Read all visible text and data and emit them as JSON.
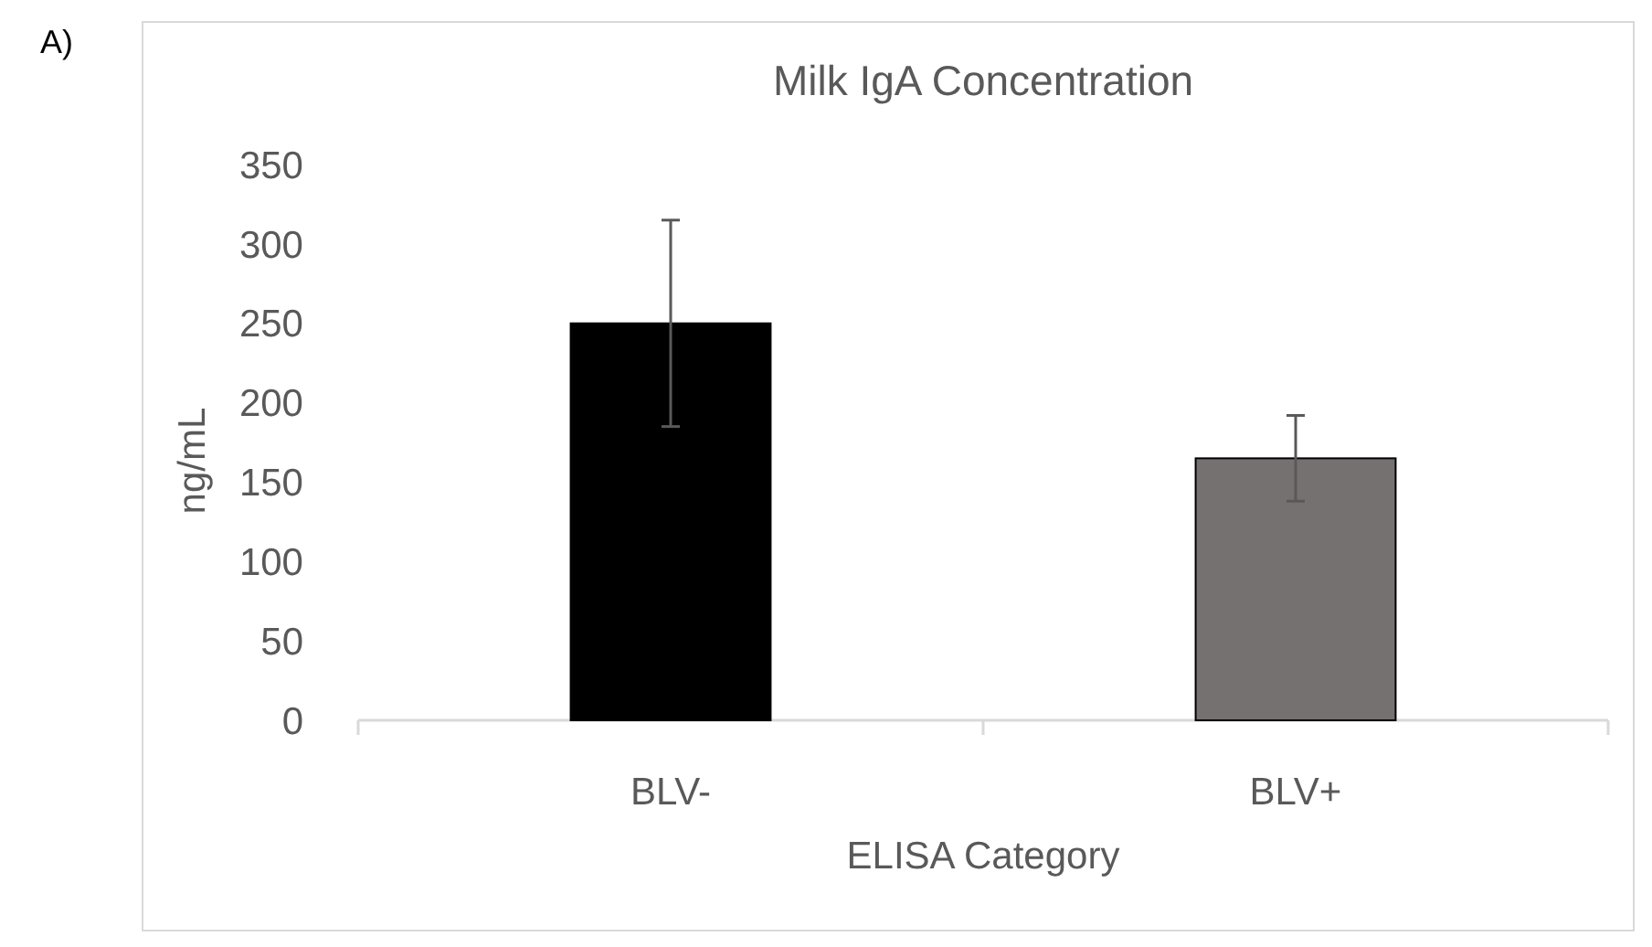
{
  "chart_data": {
    "type": "bar",
    "title": "Milk IgA Concentration",
    "xlabel": "ELISA Category",
    "ylabel": "ng/mL",
    "annotations": [
      "A)"
    ],
    "categories": [
      "BLV-",
      "BLV+"
    ],
    "values": [
      250,
      165
    ],
    "colors": [
      "#000000",
      "#767171"
    ],
    "errors": [
      65,
      27
    ],
    "ylim": [
      0,
      350
    ],
    "yticks": [
      0,
      50,
      100,
      150,
      200,
      250,
      300,
      350
    ]
  }
}
